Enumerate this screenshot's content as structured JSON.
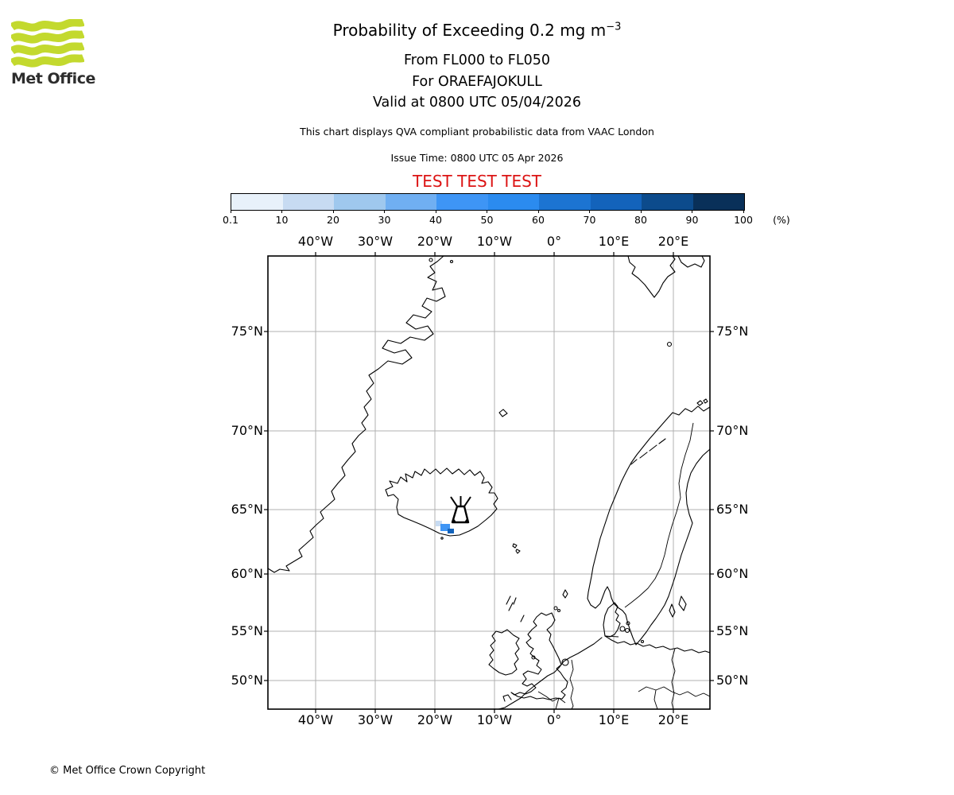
{
  "logo": {
    "brand": "Met Office",
    "green": "#c3d92e"
  },
  "header": {
    "title_base": "Probability of Exceeding 0.2 mg m",
    "title_sup": "−3",
    "line_fl": "From FL000 to FL050",
    "line_volcano": "For ORAEFAJOKULL",
    "line_valid": "Valid at 0800 UTC 05/04/2026",
    "disclaimer": "This chart displays QVA compliant probabilistic data from VAAC London",
    "issue_time": "Issue Time: 0800 UTC 05 Apr 2026",
    "test_banner": "TEST TEST TEST",
    "test_color": "#dc1414"
  },
  "colorbar": {
    "tick_labels": [
      "0.1",
      "10",
      "20",
      "30",
      "40",
      "50",
      "60",
      "70",
      "80",
      "90",
      "100"
    ],
    "unit": "(%)",
    "colors": [
      "#e8f1fa",
      "#c7dbf2",
      "#9fc8ee",
      "#70aff2",
      "#3e95f5",
      "#2b8bef",
      "#1c74d2",
      "#1363bb",
      "#0c4b8c",
      "#093059"
    ]
  },
  "map": {
    "lon_labels": [
      "40°W",
      "30°W",
      "20°W",
      "10°W",
      "0°",
      "10°E",
      "20°E"
    ],
    "lat_labels": [
      "75°N",
      "70°N",
      "65°N",
      "60°N",
      "55°N",
      "50°N"
    ],
    "gridline_color": "#b0b0b0"
  },
  "chart_data": {
    "type": "map-probability-contour",
    "title": "Probability of Exceeding 0.2 mg m−3",
    "flight_levels": "FL000 to FL050",
    "volcano": {
      "name": "ORAEFAJOKULL",
      "approx_lat": "64°N",
      "approx_lon": "16.5°W",
      "marker": "volcano-glyph"
    },
    "plume_cells": [
      {
        "location": "just SW of volcano, Iceland south coast",
        "probability_bin": "10–20%",
        "color": "#c7dbf2"
      },
      {
        "location": "SW of volcano",
        "probability_bin": "40–50%",
        "color": "#3e95f5"
      },
      {
        "location": "at volcano SW base",
        "probability_bin": "70–80%",
        "color": "#1363bb"
      }
    ],
    "legend": {
      "ticks": [
        "0.1",
        "10",
        "20",
        "30",
        "40",
        "50",
        "60",
        "70",
        "80",
        "90",
        "100"
      ],
      "unit": "(%)"
    },
    "lon_range_labeled": [
      "40°W",
      "20°E"
    ],
    "lat_range_labeled": [
      "50°N",
      "75°N"
    ]
  },
  "footer": {
    "copyright": "© Met Office Crown Copyright"
  }
}
